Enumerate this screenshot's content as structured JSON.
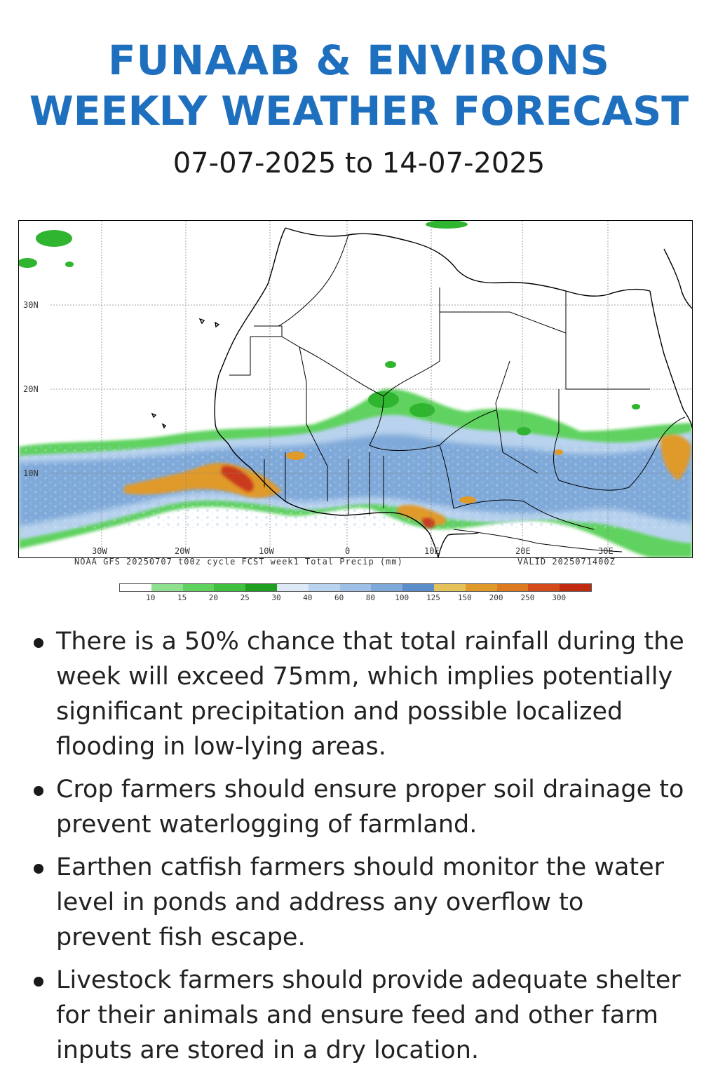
{
  "header": {
    "title_line1": "FUNAAB & ENVIRONS",
    "title_line2": "WEEKLY WEATHER FORECAST",
    "date_range": "07-07-2025 to 14-07-2025"
  },
  "map": {
    "lat_labels": [
      "30N",
      "20N",
      "10N"
    ],
    "lon_labels": [
      "30W",
      "20W",
      "10W",
      "0",
      "10E",
      "20E",
      "30E"
    ],
    "caption_left": "NOAA GFS 20250707 t00z cycle FCST week1 Total Precip (mm)",
    "caption_right": "VALID 2025071400Z",
    "colors": {
      "land_border": "#000000",
      "green_light": "#5fd25f",
      "green": "#2fb52f",
      "blue_light": "#b9d3ee",
      "blue": "#7fa9d9",
      "blue_dark": "#5b8ec8",
      "orange": "#e09a2a",
      "red": "#c93a1a"
    }
  },
  "legend": {
    "ticks": [
      "10",
      "15",
      "20",
      "25",
      "30",
      "40",
      "60",
      "80",
      "100",
      "125",
      "150",
      "200",
      "250",
      "300"
    ],
    "colors": [
      "#ffffff",
      "#8fe08f",
      "#5fd25f",
      "#3fc03f",
      "#1f9f1f",
      "#dde9f6",
      "#b9d3ee",
      "#9fc0e6",
      "#7fa9d9",
      "#5b8ec8",
      "#e6c25a",
      "#e09a2a",
      "#dd7a1f",
      "#d44a1a",
      "#c02a10"
    ]
  },
  "bullets": [
    "There is a 50% chance that total rainfall during the week will exceed 75mm, which implies potentially significant precipitation and possible localized flooding in low-lying areas.",
    "Crop farmers should ensure proper soil drainage to prevent waterlogging of farmland.",
    "Earthen catfish farmers should monitor the water level in ponds and address any overflow to prevent fish escape.",
    "Livestock farmers should provide adequate shelter for their animals and ensure feed and other farm inputs are stored in a dry location."
  ]
}
